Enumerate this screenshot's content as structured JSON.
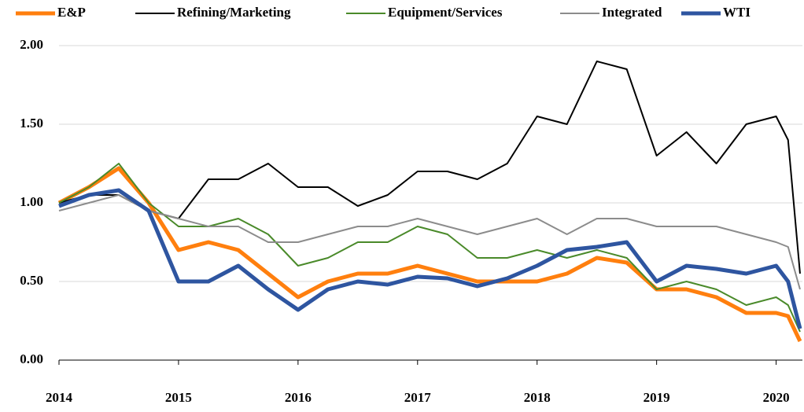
{
  "chart_data": {
    "type": "line",
    "x": [
      2014,
      2014.25,
      2014.5,
      2014.75,
      2015,
      2015.25,
      2015.5,
      2015.75,
      2016,
      2016.25,
      2016.5,
      2016.75,
      2017,
      2017.25,
      2017.5,
      2017.75,
      2018,
      2018.25,
      2018.5,
      2018.75,
      2019,
      2019.25,
      2019.5,
      2019.75,
      2020,
      2020.1,
      2020.2
    ],
    "series": [
      {
        "name": "E&P",
        "color": "#ff7f0e",
        "width": 5,
        "values": [
          1.0,
          1.1,
          1.22,
          1.0,
          0.7,
          0.75,
          0.7,
          0.55,
          0.4,
          0.5,
          0.55,
          0.55,
          0.6,
          0.55,
          0.5,
          0.5,
          0.5,
          0.55,
          0.65,
          0.62,
          0.45,
          0.45,
          0.4,
          0.3,
          0.3,
          0.28,
          0.12
        ]
      },
      {
        "name": "Refining/Marketing",
        "color": "#000000",
        "width": 2,
        "values": [
          1.0,
          1.05,
          1.05,
          0.95,
          0.9,
          1.15,
          1.15,
          1.25,
          1.1,
          1.1,
          0.98,
          1.05,
          1.2,
          1.2,
          1.15,
          1.25,
          1.55,
          1.5,
          1.9,
          1.85,
          1.3,
          1.45,
          1.25,
          1.5,
          1.55,
          1.4,
          0.55
        ]
      },
      {
        "name": "Equipment/Services",
        "color": "#4a8a2a",
        "width": 2,
        "values": [
          1.0,
          1.1,
          1.25,
          1.0,
          0.85,
          0.85,
          0.9,
          0.8,
          0.6,
          0.65,
          0.75,
          0.75,
          0.85,
          0.8,
          0.65,
          0.65,
          0.7,
          0.65,
          0.7,
          0.65,
          0.45,
          0.5,
          0.45,
          0.35,
          0.4,
          0.35,
          0.18
        ]
      },
      {
        "name": "Integrated",
        "color": "#8c8c8c",
        "width": 2,
        "values": [
          0.95,
          1.0,
          1.05,
          0.95,
          0.9,
          0.85,
          0.85,
          0.75,
          0.75,
          0.8,
          0.85,
          0.85,
          0.9,
          0.85,
          0.8,
          0.85,
          0.9,
          0.8,
          0.9,
          0.9,
          0.85,
          0.85,
          0.85,
          0.8,
          0.75,
          0.72,
          0.45
        ]
      },
      {
        "name": "WTI",
        "color": "#2e55a0",
        "width": 5,
        "values": [
          0.98,
          1.05,
          1.08,
          0.95,
          0.5,
          0.5,
          0.6,
          0.45,
          0.32,
          0.45,
          0.5,
          0.48,
          0.53,
          0.52,
          0.47,
          0.52,
          0.6,
          0.7,
          0.72,
          0.75,
          0.5,
          0.6,
          0.58,
          0.55,
          0.6,
          0.5,
          0.2
        ]
      }
    ],
    "xlim": [
      2014,
      2020.22
    ],
    "xticks": [
      2014,
      2015,
      2016,
      2017,
      2018,
      2019,
      2020
    ],
    "ylim": [
      0,
      2
    ],
    "yticks": [
      {
        "value": 0,
        "label": "0.00"
      },
      {
        "value": 0.5,
        "label": "0.50"
      },
      {
        "value": 1,
        "label": "1.00"
      },
      {
        "value": 1.5,
        "label": "1.50"
      },
      {
        "value": 2,
        "label": "2.00"
      }
    ],
    "grid": true,
    "legend": "top"
  }
}
